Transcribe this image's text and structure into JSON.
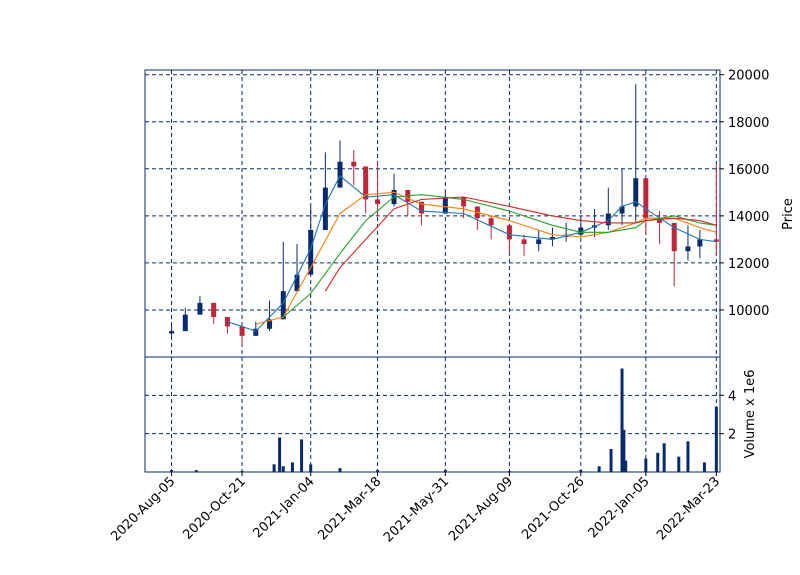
{
  "chart_data": {
    "type": "candlestick",
    "title": "",
    "price_panel": {
      "ylabel": "Price",
      "ylim": [
        8000,
        20200
      ],
      "yticks": [
        10000,
        12000,
        14000,
        16000,
        18000,
        20000
      ],
      "ytick_labels": [
        "10000",
        "12000",
        "14000",
        "16000",
        "18000",
        "20000"
      ],
      "grid": true,
      "grid_style": "dashed",
      "series": [
        {
          "kind": "candles",
          "dates": [
            "2020-08-05",
            "2020-08-20",
            "2020-09-05",
            "2020-09-20",
            "2020-10-05",
            "2020-10-21",
            "2020-11-05",
            "2020-11-20",
            "2020-12-05",
            "2020-12-20",
            "2021-01-04",
            "2021-01-20",
            "2021-02-05",
            "2021-02-20",
            "2021-03-05",
            "2021-03-18",
            "2021-04-05",
            "2021-04-20",
            "2021-05-05",
            "2021-05-31",
            "2021-06-20",
            "2021-07-05",
            "2021-07-20",
            "2021-08-09",
            "2021-08-25",
            "2021-09-10",
            "2021-09-25",
            "2021-10-10",
            "2021-10-26",
            "2021-11-10",
            "2021-11-25",
            "2021-12-10",
            "2021-12-25",
            "2022-01-05",
            "2022-01-20",
            "2022-02-05",
            "2022-02-20",
            "2022-03-05",
            "2022-03-23"
          ],
          "close": [
            9100,
            9800,
            10300,
            9700,
            9300,
            8900,
            9200,
            9600,
            10800,
            11500,
            13400,
            15200,
            16300,
            16100,
            14700,
            14500,
            15100,
            14600,
            14100,
            14800,
            14400,
            13900,
            13600,
            13000,
            12800,
            13000,
            13100,
            13200,
            13500,
            13600,
            14100,
            14400,
            15600,
            13900,
            13700,
            12500,
            12700,
            13000,
            12900
          ],
          "high": [
            9400,
            10100,
            10600,
            10000,
            9600,
            9300,
            9500,
            10400,
            12900,
            12800,
            14400,
            16700,
            17200,
            16800,
            15500,
            16300,
            15800,
            15100,
            14600,
            15000,
            14800,
            14300,
            14000,
            13400,
            13200,
            13400,
            13500,
            13700,
            14000,
            14300,
            15200,
            16000,
            19600,
            14500,
            14200,
            13700,
            13600,
            13400,
            16200
          ],
          "low": [
            8900,
            9500,
            9900,
            9400,
            9000,
            8500,
            8900,
            9100,
            10100,
            10900,
            12600,
            14300,
            15600,
            15300,
            14100,
            14000,
            14400,
            14000,
            13600,
            14300,
            13900,
            13400,
            13000,
            12400,
            12300,
            12500,
            12700,
            12900,
            13100,
            13100,
            13400,
            13600,
            13700,
            13200,
            12800,
            11000,
            12100,
            12200,
            12300
          ]
        },
        {
          "kind": "moving-average",
          "color": "#1f77b4",
          "dates": [
            "2020-10-05",
            "2020-11-05",
            "2020-12-05",
            "2021-01-04",
            "2021-01-20",
            "2021-02-05",
            "2021-03-05",
            "2021-04-05",
            "2021-05-05",
            "2021-06-20",
            "2021-08-09",
            "2021-09-25",
            "2021-10-26",
            "2021-11-25",
            "2021-12-10",
            "2021-12-25",
            "2022-01-05",
            "2022-02-05",
            "2022-03-05",
            "2022-03-23"
          ],
          "values": [
            9500,
            9100,
            10300,
            12600,
            14500,
            15700,
            14800,
            14900,
            14200,
            14100,
            13200,
            13000,
            13300,
            13800,
            14400,
            14600,
            14300,
            13500,
            13000,
            12900
          ]
        },
        {
          "kind": "moving-average",
          "color": "#ff7f0e",
          "dates": [
            "2020-11-05",
            "2020-12-05",
            "2021-01-04",
            "2021-02-05",
            "2021-03-05",
            "2021-04-05",
            "2021-05-05",
            "2021-06-20",
            "2021-08-09",
            "2021-09-25",
            "2021-10-26",
            "2021-11-25",
            "2021-12-25",
            "2022-01-05",
            "2022-02-05",
            "2022-03-05",
            "2022-03-23"
          ],
          "values": [
            9400,
            9700,
            11800,
            14100,
            14900,
            15000,
            14500,
            14300,
            13800,
            13200,
            13100,
            13300,
            13700,
            13900,
            13900,
            13500,
            13300
          ]
        },
        {
          "kind": "moving-average",
          "color": "#2ca02c",
          "dates": [
            "2020-12-05",
            "2021-01-04",
            "2021-02-05",
            "2021-03-05",
            "2021-04-05",
            "2021-05-05",
            "2021-06-20",
            "2021-08-09",
            "2021-09-25",
            "2021-10-26",
            "2021-11-25",
            "2021-12-25",
            "2022-01-05",
            "2022-02-05",
            "2022-03-05",
            "2022-03-23"
          ],
          "values": [
            9700,
            10700,
            12400,
            13800,
            14800,
            14900,
            14700,
            14200,
            13600,
            13300,
            13300,
            13500,
            13800,
            14000,
            13700,
            13600
          ]
        },
        {
          "kind": "moving-average",
          "color": "#d62728",
          "dates": [
            "2021-01-20",
            "2021-02-05",
            "2021-03-05",
            "2021-04-05",
            "2021-05-05",
            "2021-06-20",
            "2021-08-09",
            "2021-09-25",
            "2021-10-26",
            "2021-11-25",
            "2021-12-25",
            "2022-01-05",
            "2022-02-05",
            "2022-03-05",
            "2022-03-23"
          ],
          "values": [
            10800,
            11800,
            13000,
            14300,
            14700,
            14800,
            14400,
            14000,
            13800,
            13700,
            13700,
            13800,
            13900,
            13800,
            13600
          ]
        }
      ]
    },
    "volume_panel": {
      "ylabel": "Volume x 1e6",
      "ylim": [
        0,
        6.0
      ],
      "yticks": [
        2,
        4
      ],
      "ytick_labels": [
        "2",
        "4"
      ],
      "grid": true,
      "dates": [
        "2020-08-05",
        "2020-09-01",
        "2020-10-21",
        "2020-11-25",
        "2020-12-01",
        "2020-12-05",
        "2020-12-15",
        "2020-12-25",
        "2021-01-04",
        "2021-02-05",
        "2021-03-18",
        "2021-05-31",
        "2021-08-09",
        "2021-10-26",
        "2021-11-15",
        "2021-11-28",
        "2021-12-10",
        "2021-12-12",
        "2021-12-14",
        "2022-01-05",
        "2022-01-18",
        "2022-01-25",
        "2022-02-10",
        "2022-02-20",
        "2022-03-10",
        "2022-03-23"
      ],
      "values": [
        0.1,
        0.1,
        0.05,
        0.4,
        1.8,
        0.3,
        0.5,
        1.7,
        0.4,
        0.2,
        0.1,
        0.1,
        0.05,
        0.1,
        0.3,
        1.2,
        5.4,
        2.2,
        0.6,
        0.7,
        1.0,
        1.5,
        0.8,
        1.6,
        0.5,
        3.4
      ]
    },
    "xaxis": {
      "tick_labels": [
        "2020-Aug-05",
        "2020-Oct-21",
        "2021-Jan-04",
        "2021-Mar-18",
        "2021-May-31",
        "2021-Aug-09",
        "2021-Oct-26",
        "2022-Jan-05",
        "2022-Mar-23"
      ],
      "tick_dates": [
        "2020-08-05",
        "2020-10-21",
        "2021-01-04",
        "2021-03-18",
        "2021-05-31",
        "2021-08-09",
        "2021-10-26",
        "2022-01-05",
        "2022-03-23"
      ],
      "range": [
        "2020-07-07",
        "2022-03-27"
      ]
    },
    "colors": {
      "axes": "#0a2a6e",
      "grid": "#0a2a6e",
      "up": "#0a2a6e",
      "down": "#c0263a",
      "volume": "#0a2a6e"
    }
  }
}
